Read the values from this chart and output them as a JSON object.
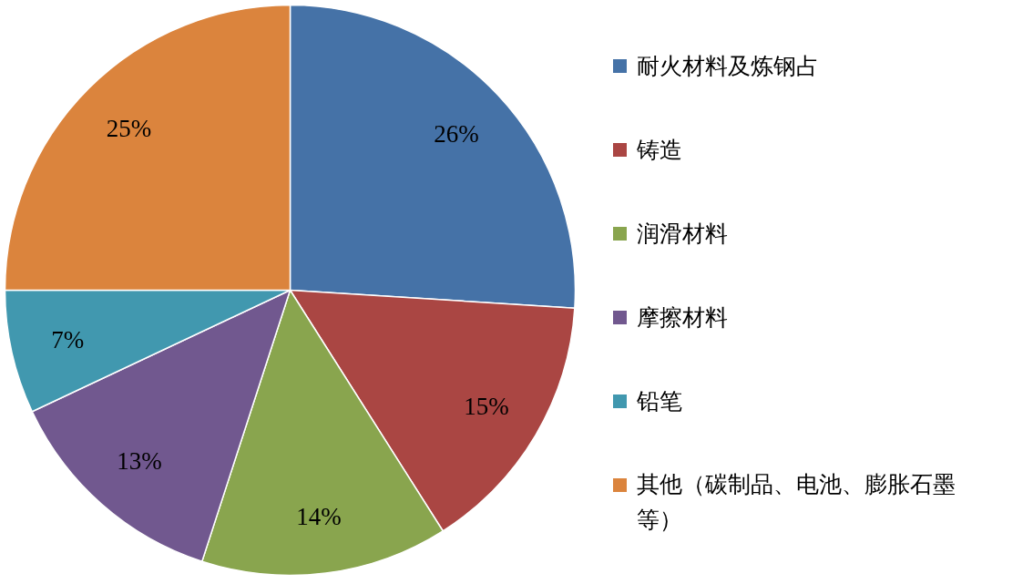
{
  "chart_data": {
    "type": "pie",
    "categories": [
      "耐火材料及炼钢占",
      "铸造",
      "润滑材料",
      "摩擦材料",
      "铅笔",
      "其他（碳制品、电池、膨胀石墨等）"
    ],
    "values": [
      26,
      15,
      14,
      13,
      7,
      25
    ],
    "colors": [
      "#4572a7",
      "#aa4643",
      "#89a54e",
      "#71588f",
      "#4198af",
      "#db843d"
    ],
    "value_labels": [
      "26%",
      "15%",
      "14%",
      "13%",
      "7%",
      "25%"
    ],
    "legend": "right"
  }
}
